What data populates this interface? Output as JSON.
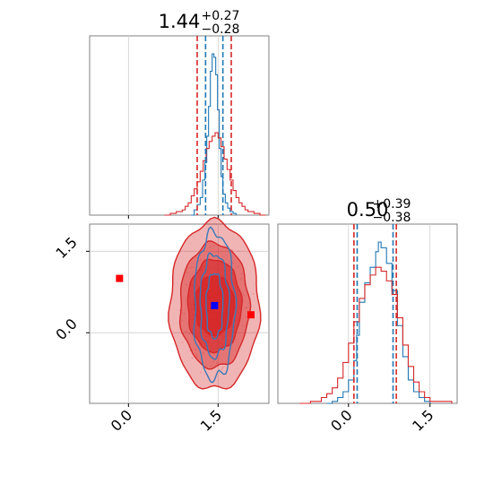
{
  "chart_data": [
    {
      "type": "line",
      "panel": "histogram",
      "title": {
        "value": "1.44",
        "plus": "+0.27",
        "minus": "−0.28"
      },
      "xlim": [
        -0.65,
        2.35
      ],
      "grid": true,
      "x_ticks": [
        0.0,
        1.5
      ],
      "x_tick_labels_shown": false,
      "vlines": {
        "blue": [
          1.29,
          1.58
        ],
        "red": [
          1.15,
          1.72
        ]
      },
      "series": [
        {
          "color": "#1f77b4",
          "x": [
            1.05,
            1.1,
            1.15,
            1.2,
            1.24,
            1.28,
            1.31,
            1.34,
            1.37,
            1.4,
            1.43,
            1.46,
            1.49,
            1.52,
            1.55,
            1.58,
            1.62,
            1.66,
            1.7,
            1.75,
            1.8
          ],
          "y": [
            0,
            3,
            6,
            10,
            20,
            30,
            45,
            62,
            82,
            92,
            90,
            80,
            60,
            38,
            22,
            12,
            7,
            4,
            2,
            1,
            0
          ]
        },
        {
          "color": "#d62728",
          "x": [
            0.6,
            0.7,
            0.8,
            0.9,
            0.95,
            1.0,
            1.05,
            1.1,
            1.15,
            1.2,
            1.25,
            1.3,
            1.35,
            1.4,
            1.45,
            1.5,
            1.55,
            1.6,
            1.65,
            1.7,
            1.75,
            1.8,
            1.85,
            1.9,
            1.95,
            2.0,
            2.1,
            2.2,
            2.3
          ],
          "y": [
            0,
            1,
            2,
            3,
            5,
            7,
            11,
            15,
            19,
            25,
            31,
            38,
            42,
            45,
            47,
            44,
            39,
            32,
            26,
            20,
            14,
            10,
            7,
            5,
            3,
            2,
            1,
            0,
            0
          ]
        }
      ]
    },
    {
      "type": "scatter",
      "panel": "2d",
      "xlim": [
        -0.65,
        2.35
      ],
      "ylim": [
        -1.3,
        2.0
      ],
      "grid": true,
      "x_ticks": [
        0.0,
        1.5
      ],
      "x_tick_labels": [
        "0.0",
        "1.5"
      ],
      "y_ticks": [
        0.0,
        1.5
      ],
      "y_tick_labels": [
        "0.0",
        "1.5"
      ],
      "markers": [
        {
          "color": "#ff0000",
          "x": -0.15,
          "y": 1.0
        },
        {
          "color": "#ff0000",
          "x": 2.05,
          "y": 0.33
        },
        {
          "color": "#0000ff",
          "x": 1.44,
          "y": 0.5
        }
      ],
      "red_contours": [
        {
          "cx": 1.44,
          "cy": 0.5,
          "rx": 0.75,
          "ry": 1.55
        },
        {
          "cx": 1.44,
          "cy": 0.5,
          "rx": 0.58,
          "ry": 1.15
        },
        {
          "cx": 1.44,
          "cy": 0.5,
          "rx": 0.45,
          "ry": 0.85
        },
        {
          "cx": 1.44,
          "cy": 0.5,
          "rx": 0.33,
          "ry": 0.55
        }
      ],
      "blue_contours": [
        {
          "cx": 1.44,
          "cy": 0.5,
          "rx": 0.34,
          "ry": 1.35
        },
        {
          "cx": 1.44,
          "cy": 0.5,
          "rx": 0.24,
          "ry": 0.95
        },
        {
          "cx": 1.44,
          "cy": 0.5,
          "rx": 0.14,
          "ry": 0.6
        }
      ]
    },
    {
      "type": "line",
      "panel": "histogram",
      "title": {
        "value": "0.50",
        "plus": "+0.39",
        "minus": "−0.38"
      },
      "xlim": [
        -1.3,
        2.0
      ],
      "grid": true,
      "x_ticks": [
        0.0,
        1.5
      ],
      "x_tick_labels": [
        "0.0",
        "1.5"
      ],
      "vlines": {
        "blue": [
          0.16,
          0.82
        ],
        "red": [
          0.1,
          0.88
        ]
      },
      "series": [
        {
          "color": "#1f77b4",
          "x": [
            -0.4,
            -0.3,
            -0.2,
            -0.1,
            0.0,
            0.1,
            0.15,
            0.2,
            0.3,
            0.4,
            0.5,
            0.55,
            0.6,
            0.7,
            0.8,
            0.9,
            1.0,
            1.1,
            1.2,
            1.3,
            1.4,
            1.5
          ],
          "y": [
            0,
            1,
            3,
            6,
            12,
            22,
            35,
            52,
            62,
            70,
            78,
            83,
            80,
            72,
            58,
            40,
            24,
            12,
            6,
            3,
            1,
            0
          ]
        },
        {
          "color": "#d62728",
          "x": [
            -0.9,
            -0.7,
            -0.5,
            -0.4,
            -0.3,
            -0.2,
            -0.1,
            0.0,
            0.1,
            0.2,
            0.3,
            0.4,
            0.5,
            0.6,
            0.7,
            0.8,
            0.9,
            1.0,
            1.1,
            1.2,
            1.3,
            1.4,
            1.5,
            1.7,
            1.9
          ],
          "y": [
            0,
            1,
            3,
            5,
            8,
            13,
            21,
            31,
            42,
            54,
            61,
            66,
            70,
            68,
            63,
            56,
            44,
            30,
            19,
            11,
            6,
            3,
            1,
            1,
            0
          ]
        }
      ]
    }
  ]
}
